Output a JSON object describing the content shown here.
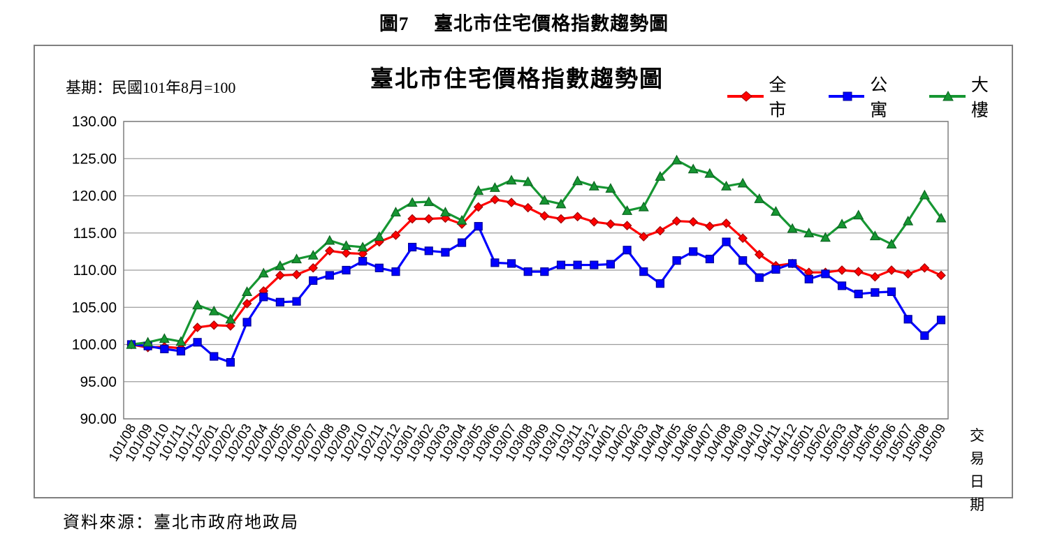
{
  "figure": {
    "caption": "圖7　 臺北市住宅價格指數趨勢圖",
    "source": "資料來源：臺北市政府地政局"
  },
  "chart": {
    "title": "臺北市住宅價格指數趨勢圖",
    "base_note": "基期：民國101年8月=100",
    "x_axis_title_line1": "交易",
    "x_axis_title_line2": "日期"
  },
  "chart_data": {
    "type": "line",
    "title": "臺北市住宅價格指數趨勢圖",
    "grid": true,
    "legend_position": "top-right",
    "ylim": [
      90,
      130
    ],
    "ytick_step": 5,
    "ytick_labels": [
      "130.00",
      "125.00",
      "120.00",
      "115.00",
      "110.00",
      "105.00",
      "100.00",
      "95.00",
      "90.00"
    ],
    "categories": [
      "101/08",
      "101/09",
      "101/10",
      "101/11",
      "101/12",
      "102/01",
      "102/02",
      "102/03",
      "102/04",
      "102/05",
      "102/06",
      "102/07",
      "102/08",
      "102/09",
      "102/10",
      "102/11",
      "102/12",
      "103/01",
      "103/02",
      "103/03",
      "103/04",
      "103/05",
      "103/06",
      "103/07",
      "103/08",
      "103/09",
      "103/10",
      "103/11",
      "103/12",
      "104/01",
      "104/02",
      "104/03",
      "104/04",
      "104/05",
      "104/06",
      "104/07",
      "104/08",
      "104/09",
      "104/10",
      "104/11",
      "104/12",
      "105/01",
      "105/02",
      "105/03",
      "105/04",
      "105/05",
      "105/06",
      "105/07",
      "105/08",
      "105/09"
    ],
    "series": [
      {
        "name": "全市",
        "color": "#ff0000",
        "edge": "#a00000",
        "marker": "diamond",
        "values": [
          100.0,
          99.6,
          99.7,
          99.5,
          102.3,
          102.6,
          102.5,
          105.5,
          107.2,
          109.3,
          109.4,
          110.3,
          112.6,
          112.3,
          112.2,
          113.8,
          114.7,
          116.9,
          116.9,
          117.0,
          116.2,
          118.5,
          119.5,
          119.1,
          118.4,
          117.3,
          116.9,
          117.2,
          116.5,
          116.2,
          116.0,
          114.5,
          115.3,
          116.6,
          116.5,
          115.9,
          116.3,
          114.3,
          112.1,
          110.6,
          110.9,
          109.7,
          109.7,
          110.0,
          109.8,
          109.1,
          110.0,
          109.5,
          110.3,
          109.3
        ]
      },
      {
        "name": "公寓",
        "color": "#0000ff",
        "edge": "#000099",
        "marker": "square",
        "values": [
          100.0,
          99.8,
          99.4,
          99.1,
          100.3,
          98.4,
          97.6,
          103.0,
          106.4,
          105.7,
          105.8,
          108.6,
          109.3,
          110.0,
          111.2,
          110.3,
          109.8,
          113.1,
          112.6,
          112.4,
          113.7,
          115.9,
          111.0,
          110.9,
          109.8,
          109.8,
          110.7,
          110.7,
          110.7,
          110.8,
          112.7,
          109.8,
          108.2,
          111.3,
          112.5,
          111.5,
          113.8,
          111.3,
          109.0,
          110.1,
          110.9,
          108.8,
          109.5,
          107.9,
          106.8,
          107.0,
          107.1,
          103.4,
          101.2,
          103.3
        ]
      },
      {
        "name": "大樓",
        "color": "#169632",
        "edge": "#0b6420",
        "marker": "triangle",
        "values": [
          100.0,
          100.3,
          100.8,
          100.4,
          105.3,
          104.5,
          103.4,
          107.1,
          109.6,
          110.6,
          111.5,
          112.0,
          114.0,
          113.3,
          113.1,
          114.5,
          117.8,
          119.1,
          119.2,
          117.8,
          116.7,
          120.7,
          121.1,
          122.1,
          121.9,
          119.4,
          118.9,
          122.0,
          121.3,
          121.0,
          118.0,
          118.5,
          122.6,
          124.8,
          123.6,
          123.0,
          121.3,
          121.7,
          119.6,
          117.9,
          115.6,
          115.0,
          114.4,
          116.2,
          117.4,
          114.6,
          113.5,
          116.6,
          120.1,
          117.0
        ]
      }
    ]
  }
}
